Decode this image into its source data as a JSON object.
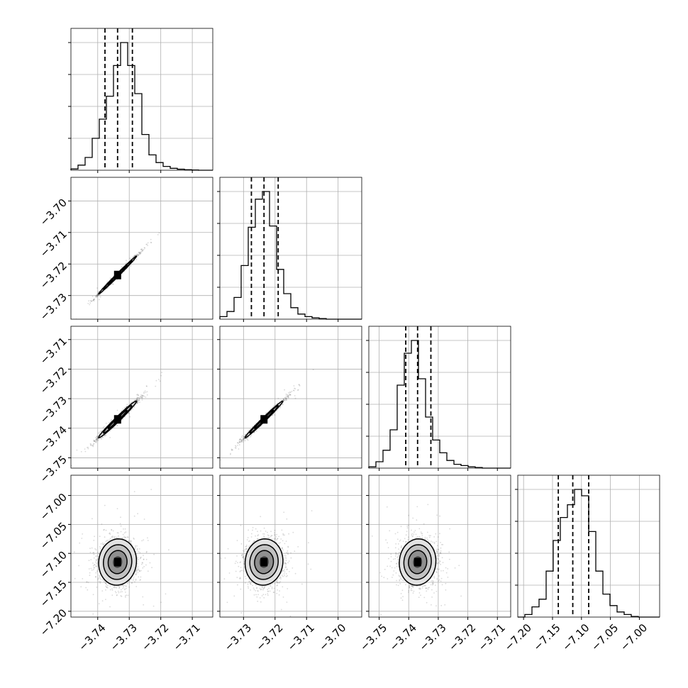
{
  "chart_data": {
    "type": "corner",
    "grid": true,
    "variables": [
      {
        "ticks": [
          -3.74,
          -3.73,
          -3.72,
          -3.71
        ],
        "tick_labels": [
          "−3.74",
          "−3.73",
          "−3.72",
          "−3.71"
        ],
        "range": [
          -3.7485,
          -3.7035
        ],
        "center": -3.7337,
        "sd": 0.003,
        "quantiles": [
          -3.7377,
          -3.7337,
          -3.729
        ]
      },
      {
        "ticks": [
          -3.73,
          -3.72,
          -3.71,
          -3.7
        ],
        "tick_labels": [
          "−3.73",
          "−3.72",
          "−3.71",
          "−3.70"
        ],
        "range": [
          -3.7375,
          -3.6925
        ],
        "center": -3.7235,
        "sd": 0.003,
        "quantiles": [
          -3.7275,
          -3.7235,
          -3.719
        ]
      },
      {
        "ticks": [
          -3.75,
          -3.74,
          -3.73,
          -3.72,
          -3.71
        ],
        "tick_labels": [
          "−3.75",
          "−3.74",
          "−3.73",
          "−3.72",
          "−3.71"
        ],
        "range": [
          -3.7535,
          -3.7055
        ],
        "center": -3.737,
        "sd": 0.0031,
        "quantiles": [
          -3.741,
          -3.737,
          -3.7325
        ]
      },
      {
        "ticks": [
          -7.2,
          -7.15,
          -7.1,
          -7.05,
          -7.0
        ],
        "tick_labels": [
          "−7.20",
          "−7.15",
          "−7.10",
          "−7.05",
          "−7.00"
        ],
        "range": [
          -7.21,
          -6.965
        ],
        "center": -7.115,
        "sd": 0.02,
        "quantiles": [
          -7.14,
          -7.115,
          -7.0875
        ]
      }
    ],
    "histograms": [
      [
        0.01,
        0.04,
        0.1,
        0.25,
        0.4,
        0.58,
        0.82,
        1.0,
        0.82,
        0.6,
        0.28,
        0.12,
        0.06,
        0.03,
        0.015,
        0.008,
        0.004,
        0.002,
        0.0,
        0.0
      ],
      [
        0.02,
        0.06,
        0.17,
        0.42,
        0.72,
        0.94,
        1.0,
        0.73,
        0.39,
        0.2,
        0.09,
        0.04,
        0.02,
        0.01,
        0.005,
        0.0,
        0.0,
        0.0,
        0.0,
        0.0
      ],
      [
        0.01,
        0.05,
        0.14,
        0.3,
        0.65,
        0.9,
        1.0,
        0.7,
        0.4,
        0.22,
        0.12,
        0.06,
        0.03,
        0.02,
        0.01,
        0.005,
        0.0,
        0.0,
        0.0,
        0.0
      ],
      [
        0.0,
        0.02,
        0.08,
        0.14,
        0.36,
        0.6,
        0.78,
        0.88,
        1.0,
        0.95,
        0.67,
        0.36,
        0.18,
        0.09,
        0.04,
        0.02,
        0.005,
        0.0,
        0.0,
        0.0
      ]
    ],
    "correlations": {
      "0-1": 0.995,
      "0-2": 0.985,
      "1-2": 0.99,
      "0-3": 0.05,
      "1-3": 0.05,
      "2-3": 0.05
    }
  }
}
